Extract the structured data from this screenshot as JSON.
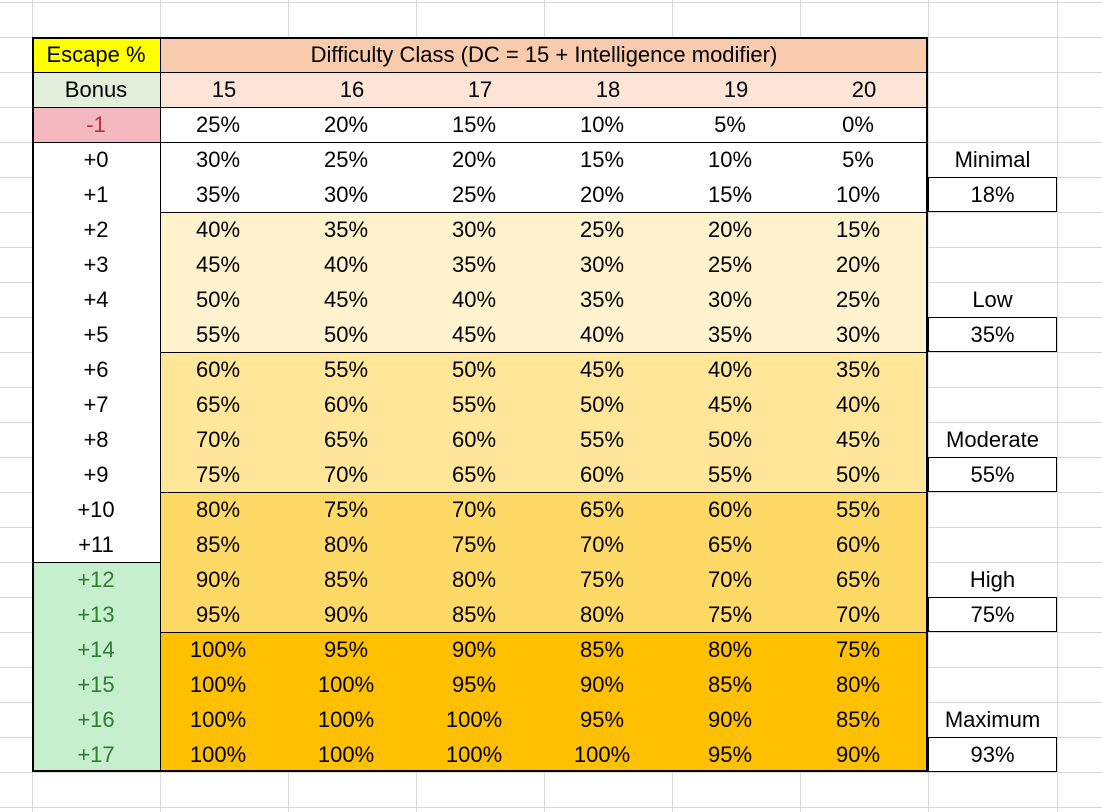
{
  "sheet": {
    "corner_label": "Escape %",
    "header_title": "Difficulty Class (DC = 15 + Intelligence modifier)",
    "bonus_header": "Bonus",
    "dc_values": [
      "15",
      "16",
      "17",
      "18",
      "19",
      "20"
    ],
    "rows": [
      {
        "bonus": "-1",
        "values": [
          "25%",
          "20%",
          "15%",
          "10%",
          "5%",
          "0%"
        ]
      },
      {
        "bonus": "+0",
        "values": [
          "30%",
          "25%",
          "20%",
          "15%",
          "10%",
          "5%"
        ]
      },
      {
        "bonus": "+1",
        "values": [
          "35%",
          "30%",
          "25%",
          "20%",
          "15%",
          "10%"
        ]
      },
      {
        "bonus": "+2",
        "values": [
          "40%",
          "35%",
          "30%",
          "25%",
          "20%",
          "15%"
        ]
      },
      {
        "bonus": "+3",
        "values": [
          "45%",
          "40%",
          "35%",
          "30%",
          "25%",
          "20%"
        ]
      },
      {
        "bonus": "+4",
        "values": [
          "50%",
          "45%",
          "40%",
          "35%",
          "30%",
          "25%"
        ]
      },
      {
        "bonus": "+5",
        "values": [
          "55%",
          "50%",
          "45%",
          "40%",
          "35%",
          "30%"
        ]
      },
      {
        "bonus": "+6",
        "values": [
          "60%",
          "55%",
          "50%",
          "45%",
          "40%",
          "35%"
        ]
      },
      {
        "bonus": "+7",
        "values": [
          "65%",
          "60%",
          "55%",
          "50%",
          "45%",
          "40%"
        ]
      },
      {
        "bonus": "+8",
        "values": [
          "70%",
          "65%",
          "60%",
          "55%",
          "50%",
          "45%"
        ]
      },
      {
        "bonus": "+9",
        "values": [
          "75%",
          "70%",
          "65%",
          "60%",
          "55%",
          "50%"
        ]
      },
      {
        "bonus": "+10",
        "values": [
          "80%",
          "75%",
          "70%",
          "65%",
          "60%",
          "55%"
        ]
      },
      {
        "bonus": "+11",
        "values": [
          "85%",
          "80%",
          "75%",
          "70%",
          "65%",
          "60%"
        ]
      },
      {
        "bonus": "+12",
        "values": [
          "90%",
          "85%",
          "80%",
          "75%",
          "70%",
          "65%"
        ]
      },
      {
        "bonus": "+13",
        "values": [
          "95%",
          "90%",
          "85%",
          "80%",
          "75%",
          "70%"
        ]
      },
      {
        "bonus": "+14",
        "values": [
          "100%",
          "95%",
          "90%",
          "85%",
          "80%",
          "75%"
        ]
      },
      {
        "bonus": "+15",
        "values": [
          "100%",
          "100%",
          "95%",
          "90%",
          "85%",
          "80%"
        ]
      },
      {
        "bonus": "+16",
        "values": [
          "100%",
          "100%",
          "100%",
          "95%",
          "90%",
          "85%"
        ]
      },
      {
        "bonus": "+17",
        "values": [
          "100%",
          "100%",
          "100%",
          "100%",
          "95%",
          "90%"
        ]
      }
    ],
    "tiers": [
      {
        "name": "Minimal",
        "value": "18%"
      },
      {
        "name": "Low",
        "value": "35%"
      },
      {
        "name": "Moderate",
        "value": "55%"
      },
      {
        "name": "High",
        "value": "75%"
      },
      {
        "name": "Maximum",
        "value": "93%"
      }
    ],
    "colors": {
      "corner_bg": "#ffff00",
      "title_bg": "#f8cbad",
      "dc_row_bg": "#fce4d6",
      "bonus_header_bg": "#e2efda",
      "negative_bg": "#f4b8c0",
      "negative_text": "#c0303b",
      "green_bg": "#c6efce",
      "green_text": "#2f7d32",
      "band_low": "#fff2cc",
      "band_moderate": "#ffe699",
      "band_high": "#ffd966",
      "band_maximum": "#ffc000",
      "gridline": "#d9d9d9",
      "border": "#000000"
    }
  }
}
